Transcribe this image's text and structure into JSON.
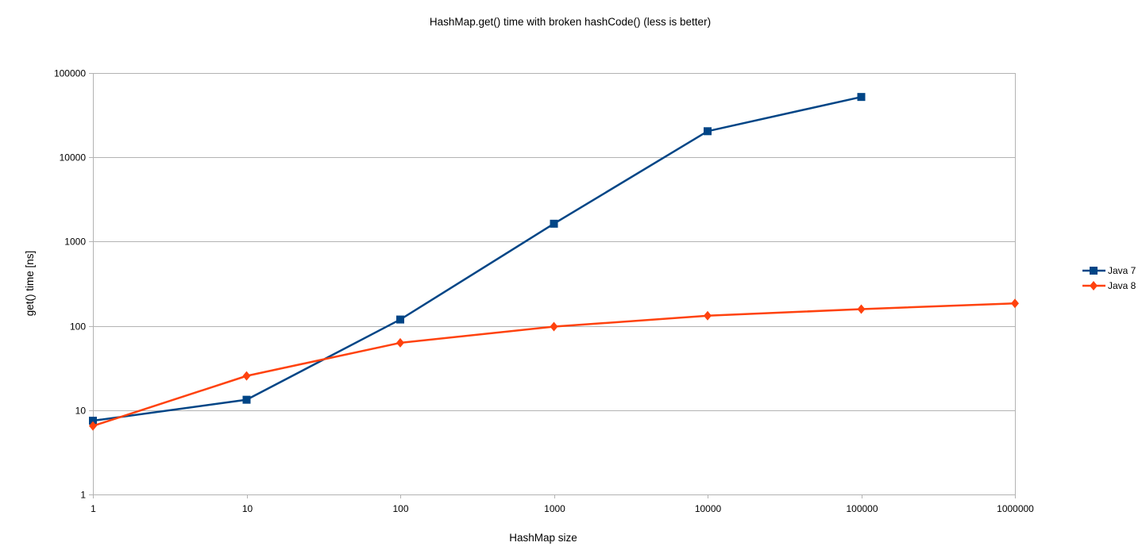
{
  "chart_data": {
    "type": "line",
    "title": "HashMap.get() time with broken hashCode() (less is better)",
    "xlabel": "HashMap size",
    "ylabel": "get() time [ns]",
    "xscale": "log",
    "yscale": "log",
    "x_tick_labels": [
      "1",
      "10",
      "100",
      "1000",
      "10000",
      "100000",
      "1000000"
    ],
    "y_tick_labels": [
      "1",
      "10",
      "100",
      "1000",
      "10000",
      "100000"
    ],
    "xlim": [
      1,
      1000000
    ],
    "ylim": [
      1,
      100000
    ],
    "grid": "horizontal",
    "legend_position": "right",
    "series": [
      {
        "name": "Java 7",
        "color": "#004586",
        "marker": "square",
        "x": [
          1,
          10,
          100,
          1000,
          10000,
          100000
        ],
        "values": [
          7.5,
          13.3,
          119,
          1630,
          20400,
          52000
        ]
      },
      {
        "name": "Java 8",
        "color": "#ff420e",
        "marker": "diamond",
        "x": [
          1,
          10,
          100,
          1000,
          10000,
          100000,
          1000000
        ],
        "values": [
          6.5,
          25.5,
          63,
          98,
          132,
          158,
          185
        ]
      }
    ]
  }
}
